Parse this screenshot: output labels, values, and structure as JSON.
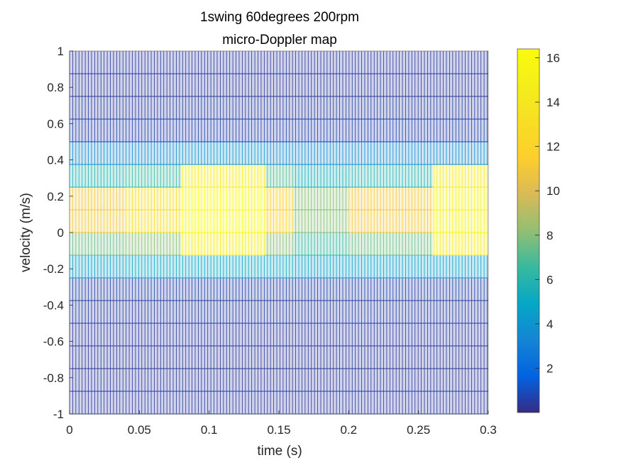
{
  "chart_data": {
    "type": "heatmap",
    "title": "1swing 60degrees 200rpm",
    "subtitle": "micro-Doppler map",
    "xlabel": "time (s)",
    "ylabel": "velocity (m/s)",
    "xlim": [
      0,
      0.3
    ],
    "ylim": [
      -1,
      1
    ],
    "x_ticks": [
      "0",
      "0.05",
      "0.1",
      "0.15",
      "0.2",
      "0.25",
      "0.3"
    ],
    "y_ticks": [
      "-1",
      "-0.8",
      "-0.6",
      "-0.4",
      "-0.2",
      "0",
      "0.2",
      "0.4",
      "0.6",
      "0.8",
      "1"
    ],
    "colorbar": {
      "colormap": "parula",
      "clim": [
        0,
        16.4
      ],
      "ticks": [
        "2",
        "4",
        "6",
        "8",
        "10",
        "12",
        "14",
        "16"
      ]
    },
    "grid": true,
    "velocity_bins": [
      0.875,
      0.75,
      0.625,
      0.5,
      0.375,
      0.25,
      0.125,
      0,
      -0.125,
      -0.25,
      -0.375,
      -0.5,
      -0.625,
      -0.75,
      -0.875,
      -1
    ],
    "time_segments": [
      {
        "t_start": 0.0,
        "t_end": 0.04,
        "values": [
          0.4,
          0.4,
          0.5,
          0.6,
          3.5,
          5.8,
          11,
          11,
          7.5,
          4.5,
          0.6,
          0.5,
          0.4,
          0.4,
          0.4,
          0.4
        ]
      },
      {
        "t_start": 0.04,
        "t_end": 0.08,
        "values": [
          0.4,
          0.4,
          0.5,
          0.6,
          3.5,
          6.5,
          13,
          13,
          8,
          5,
          0.6,
          0.5,
          0.4,
          0.4,
          0.4,
          0.4
        ]
      },
      {
        "t_start": 0.08,
        "t_end": 0.14,
        "values": [
          0.4,
          0.4,
          0.5,
          0.6,
          4,
          15,
          16.4,
          16.4,
          15,
          5,
          0.6,
          0.5,
          0.4,
          0.4,
          0.4,
          0.4
        ]
      },
      {
        "t_start": 0.14,
        "t_end": 0.16,
        "values": [
          0.4,
          0.4,
          0.5,
          0.6,
          3.5,
          7,
          12,
          12,
          8,
          5,
          0.6,
          0.5,
          0.4,
          0.4,
          0.4,
          0.4
        ]
      },
      {
        "t_start": 0.16,
        "t_end": 0.2,
        "values": [
          0.4,
          0.4,
          0.5,
          0.6,
          3.5,
          5.5,
          8,
          8,
          6.5,
          4.5,
          0.6,
          0.5,
          0.4,
          0.4,
          0.4,
          0.4
        ]
      },
      {
        "t_start": 0.2,
        "t_end": 0.26,
        "values": [
          0.4,
          0.4,
          0.5,
          0.6,
          3.5,
          6,
          11,
          11,
          7.5,
          4.5,
          0.6,
          0.5,
          0.4,
          0.4,
          0.4,
          0.4
        ]
      },
      {
        "t_start": 0.26,
        "t_end": 0.3,
        "values": [
          0.4,
          0.4,
          0.5,
          0.6,
          3.5,
          14.5,
          15.5,
          15.5,
          14.5,
          4.5,
          0.6,
          0.5,
          0.4,
          0.4,
          0.4,
          0.4
        ]
      }
    ]
  }
}
